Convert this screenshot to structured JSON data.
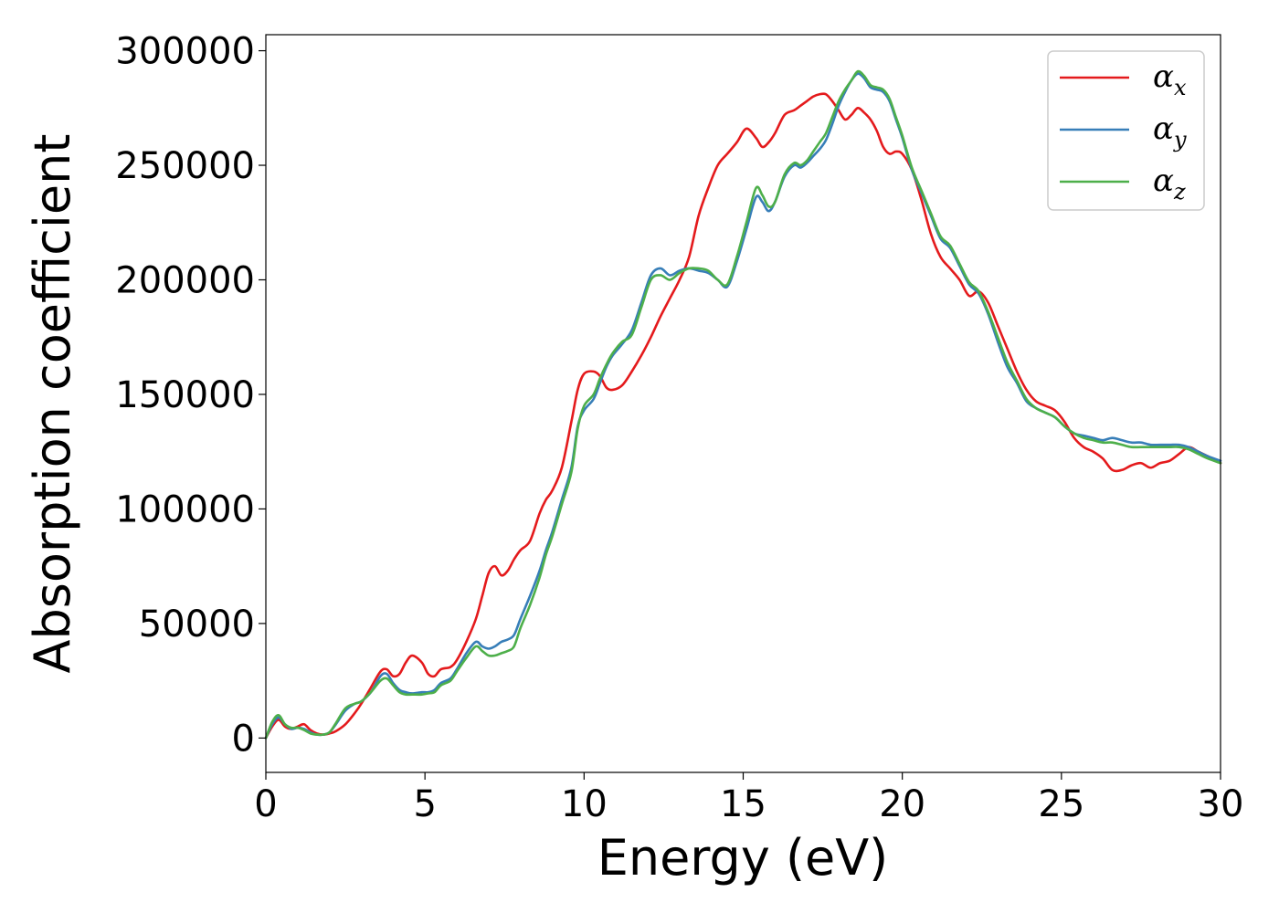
{
  "chart_data": {
    "type": "line",
    "title": "",
    "xlabel": "Energy (eV)",
    "ylabel": "Absorption coefficient",
    "xlim": [
      0,
      30
    ],
    "ylim": [
      -15000,
      307000
    ],
    "xticks": [
      0,
      5,
      10,
      15,
      20,
      25,
      30
    ],
    "yticks": [
      0,
      50000,
      100000,
      150000,
      200000,
      250000,
      300000
    ],
    "grid": false,
    "legend_position": "top-right",
    "series": [
      {
        "name": "αx",
        "label_main": "α",
        "label_sub": "x",
        "color": "#e41a1c",
        "x": [
          0,
          0.2,
          0.4,
          0.6,
          0.8,
          1.0,
          1.2,
          1.4,
          1.6,
          1.8,
          2.0,
          2.2,
          2.5,
          2.8,
          3.0,
          3.3,
          3.6,
          3.8,
          4.0,
          4.2,
          4.4,
          4.6,
          4.9,
          5.1,
          5.3,
          5.5,
          5.8,
          6.0,
          6.3,
          6.6,
          6.8,
          7.0,
          7.2,
          7.4,
          7.6,
          7.8,
          8.0,
          8.3,
          8.6,
          8.8,
          9.0,
          9.3,
          9.6,
          9.8,
          10.0,
          10.3,
          10.5,
          10.7,
          10.9,
          11.2,
          11.5,
          11.8,
          12.1,
          12.4,
          12.7,
          13.0,
          13.3,
          13.6,
          13.9,
          14.2,
          14.5,
          14.8,
          15.1,
          15.4,
          15.6,
          15.8,
          16.0,
          16.3,
          16.6,
          16.8,
          17.0,
          17.2,
          17.4,
          17.6,
          17.8,
          18.0,
          18.2,
          18.4,
          18.6,
          18.8,
          19.0,
          19.2,
          19.4,
          19.6,
          19.8,
          20.0,
          20.3,
          20.6,
          20.9,
          21.2,
          21.5,
          21.8,
          22.1,
          22.4,
          22.7,
          23.0,
          23.3,
          23.6,
          23.9,
          24.2,
          24.5,
          24.8,
          25.1,
          25.4,
          25.7,
          26.0,
          26.3,
          26.6,
          26.9,
          27.2,
          27.5,
          27.8,
          28.1,
          28.4,
          28.7,
          29.0,
          29.3,
          29.6,
          30.0
        ],
        "y": [
          0,
          5000,
          8000,
          5000,
          4000,
          5000,
          6000,
          3500,
          2000,
          1500,
          2000,
          3000,
          6000,
          11000,
          15000,
          22000,
          29000,
          30000,
          27000,
          28000,
          33000,
          36000,
          33000,
          28000,
          27000,
          30000,
          31000,
          34000,
          42000,
          52000,
          62000,
          72000,
          75000,
          71000,
          73000,
          78000,
          82000,
          86000,
          98000,
          104000,
          108000,
          118000,
          138000,
          152000,
          159000,
          160000,
          158000,
          153000,
          152000,
          154000,
          160000,
          167000,
          175000,
          184000,
          192000,
          200000,
          210000,
          228000,
          240000,
          250000,
          255000,
          260000,
          266000,
          262000,
          258000,
          260000,
          264000,
          272000,
          274000,
          276000,
          278000,
          280000,
          281000,
          281000,
          278000,
          274000,
          270000,
          272000,
          275000,
          273000,
          270000,
          265000,
          258000,
          255000,
          256000,
          255000,
          248000,
          235000,
          220000,
          210000,
          205000,
          200000,
          193000,
          195000,
          190000,
          180000,
          170000,
          160000,
          152000,
          147000,
          145000,
          143000,
          138000,
          131000,
          127000,
          125000,
          122000,
          117000,
          117000,
          119000,
          120000,
          118000,
          120000,
          121000,
          124000,
          127000,
          125000,
          123000,
          120000
        ]
      },
      {
        "name": "αy",
        "label_main": "α",
        "label_sub": "y",
        "color": "#377eb8",
        "x": [
          0,
          0.2,
          0.4,
          0.6,
          0.8,
          1.0,
          1.2,
          1.4,
          1.6,
          1.8,
          2.0,
          2.2,
          2.5,
          2.8,
          3.0,
          3.3,
          3.6,
          3.8,
          4.0,
          4.2,
          4.4,
          4.6,
          4.9,
          5.1,
          5.3,
          5.5,
          5.8,
          6.0,
          6.3,
          6.6,
          6.8,
          7.0,
          7.2,
          7.4,
          7.6,
          7.8,
          8.0,
          8.3,
          8.6,
          8.8,
          9.0,
          9.3,
          9.6,
          9.8,
          10.0,
          10.3,
          10.5,
          10.7,
          10.9,
          11.2,
          11.5,
          11.8,
          12.1,
          12.4,
          12.7,
          13.0,
          13.3,
          13.6,
          13.9,
          14.2,
          14.5,
          14.8,
          15.1,
          15.4,
          15.6,
          15.8,
          16.0,
          16.3,
          16.6,
          16.8,
          17.0,
          17.2,
          17.4,
          17.6,
          17.8,
          18.0,
          18.2,
          18.4,
          18.6,
          18.8,
          19.0,
          19.2,
          19.4,
          19.6,
          19.8,
          20.0,
          20.3,
          20.6,
          20.9,
          21.2,
          21.5,
          21.8,
          22.1,
          22.4,
          22.7,
          23.0,
          23.3,
          23.6,
          23.9,
          24.2,
          24.5,
          24.8,
          25.1,
          25.4,
          25.7,
          26.0,
          26.3,
          26.6,
          26.9,
          27.2,
          27.5,
          27.8,
          28.1,
          28.4,
          28.7,
          29.0,
          29.3,
          29.6,
          30.0
        ],
        "y": [
          0,
          6000,
          9000,
          6000,
          4000,
          4500,
          4000,
          2500,
          1500,
          1500,
          2500,
          6000,
          12000,
          15000,
          16000,
          20000,
          27000,
          28000,
          24000,
          21000,
          20000,
          19500,
          20000,
          20000,
          21000,
          24000,
          26000,
          30000,
          37000,
          42000,
          40000,
          39000,
          40000,
          42000,
          43000,
          45000,
          52000,
          62000,
          73000,
          82000,
          90000,
          104000,
          118000,
          136000,
          143000,
          148000,
          155000,
          162000,
          167000,
          172000,
          178000,
          190000,
          202000,
          205000,
          202000,
          204000,
          205000,
          204000,
          203000,
          200000,
          197000,
          208000,
          222000,
          236000,
          234000,
          230000,
          234000,
          245000,
          250000,
          249000,
          251000,
          254000,
          257000,
          261000,
          268000,
          276000,
          282000,
          287000,
          290000,
          288000,
          284000,
          283000,
          282000,
          278000,
          270000,
          262000,
          248000,
          238000,
          228000,
          218000,
          214000,
          206000,
          198000,
          194000,
          185000,
          173000,
          162000,
          155000,
          147000,
          144000,
          142000,
          140000,
          136000,
          133000,
          132000,
          131000,
          130000,
          131000,
          130000,
          129000,
          129000,
          128000,
          128000,
          128000,
          128000,
          127000,
          125000,
          123000,
          121000
        ]
      },
      {
        "name": "αz",
        "label_main": "α",
        "label_sub": "z",
        "color": "#4daf4a",
        "x": [
          0,
          0.2,
          0.4,
          0.6,
          0.8,
          1.0,
          1.2,
          1.4,
          1.6,
          1.8,
          2.0,
          2.2,
          2.5,
          2.8,
          3.0,
          3.3,
          3.6,
          3.8,
          4.0,
          4.2,
          4.4,
          4.6,
          4.9,
          5.1,
          5.3,
          5.5,
          5.8,
          6.0,
          6.3,
          6.6,
          6.8,
          7.0,
          7.2,
          7.4,
          7.6,
          7.8,
          8.0,
          8.3,
          8.6,
          8.8,
          9.0,
          9.3,
          9.6,
          9.8,
          10.0,
          10.3,
          10.5,
          10.7,
          10.9,
          11.2,
          11.5,
          11.8,
          12.1,
          12.4,
          12.7,
          13.0,
          13.3,
          13.6,
          13.9,
          14.2,
          14.5,
          14.8,
          15.1,
          15.4,
          15.6,
          15.8,
          16.0,
          16.3,
          16.6,
          16.8,
          17.0,
          17.2,
          17.4,
          17.6,
          17.8,
          18.0,
          18.2,
          18.4,
          18.6,
          18.8,
          19.0,
          19.2,
          19.4,
          19.6,
          19.8,
          20.0,
          20.3,
          20.6,
          20.9,
          21.2,
          21.5,
          21.8,
          22.1,
          22.4,
          22.7,
          23.0,
          23.3,
          23.6,
          23.9,
          24.2,
          24.5,
          24.8,
          25.1,
          25.4,
          25.7,
          26.0,
          26.3,
          26.6,
          26.9,
          27.2,
          27.5,
          27.8,
          28.1,
          28.4,
          28.7,
          29.0,
          29.3,
          29.6,
          30.0
        ],
        "y": [
          0,
          7000,
          10000,
          6000,
          4500,
          4500,
          3500,
          2000,
          1500,
          1500,
          2500,
          6500,
          13000,
          15000,
          16000,
          20000,
          25000,
          26000,
          23000,
          20000,
          19000,
          19000,
          19000,
          19500,
          20000,
          23000,
          25000,
          29000,
          35000,
          40000,
          38000,
          36000,
          36000,
          37000,
          38000,
          40000,
          48000,
          58000,
          70000,
          80000,
          88000,
          102000,
          116000,
          135000,
          145000,
          150000,
          157000,
          163000,
          168000,
          173000,
          176000,
          188000,
          200000,
          202000,
          200000,
          203000,
          205000,
          205000,
          204000,
          200000,
          198000,
          210000,
          225000,
          240000,
          237000,
          232000,
          234000,
          246000,
          251000,
          250000,
          252000,
          256000,
          260000,
          264000,
          271000,
          278000,
          283000,
          287000,
          291000,
          289000,
          285000,
          284000,
          283000,
          279000,
          271000,
          263000,
          249000,
          239000,
          229000,
          219000,
          215000,
          207000,
          199000,
          195000,
          186000,
          175000,
          164000,
          156000,
          148000,
          144000,
          142000,
          140000,
          136000,
          133000,
          131000,
          130000,
          129000,
          129000,
          128000,
          127000,
          127000,
          127000,
          127000,
          127000,
          127000,
          126000,
          124000,
          122000,
          120000
        ]
      }
    ]
  }
}
